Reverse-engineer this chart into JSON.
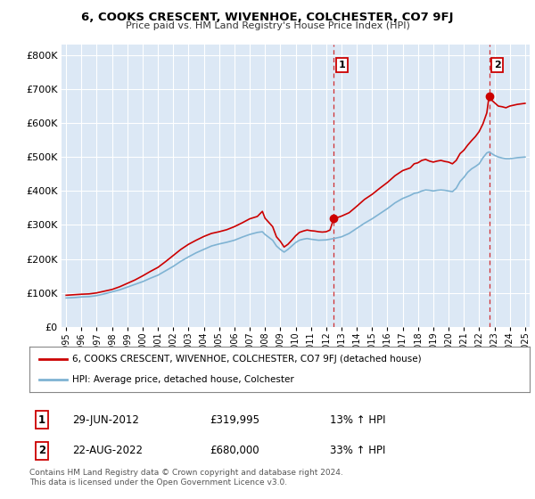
{
  "title": "6, COOKS CRESCENT, WIVENHOE, COLCHESTER, CO7 9FJ",
  "subtitle": "Price paid vs. HM Land Registry's House Price Index (HPI)",
  "legend_line1": "6, COOKS CRESCENT, WIVENHOE, COLCHESTER, CO7 9FJ (detached house)",
  "legend_line2": "HPI: Average price, detached house, Colchester",
  "annotation1_label": "1",
  "annotation1_date": "29-JUN-2012",
  "annotation1_price": "£319,995",
  "annotation1_hpi": "13% ↑ HPI",
  "annotation2_label": "2",
  "annotation2_date": "22-AUG-2022",
  "annotation2_price": "£680,000",
  "annotation2_hpi": "33% ↑ HPI",
  "footer": "Contains HM Land Registry data © Crown copyright and database right 2024.\nThis data is licensed under the Open Government Licence v3.0.",
  "red_color": "#cc0000",
  "blue_color": "#7fb3d3",
  "point1_x": 2012.5,
  "point2_x": 2022.65,
  "point1_y": 319995,
  "point2_y": 680000,
  "xlim_lo": 1994.7,
  "xlim_hi": 2025.3,
  "ylim_lo": 0,
  "ylim_hi": 830000,
  "ytick_vals": [
    0,
    100000,
    200000,
    300000,
    400000,
    500000,
    600000,
    700000,
    800000
  ],
  "ytick_labels": [
    "£0",
    "£100K",
    "£200K",
    "£300K",
    "£400K",
    "£500K",
    "£600K",
    "£700K",
    "£800K"
  ],
  "xticks": [
    1995,
    1996,
    1997,
    1998,
    1999,
    2000,
    2001,
    2002,
    2003,
    2004,
    2005,
    2006,
    2007,
    2008,
    2009,
    2010,
    2011,
    2012,
    2013,
    2014,
    2015,
    2016,
    2017,
    2018,
    2019,
    2020,
    2021,
    2022,
    2023,
    2024,
    2025
  ],
  "background_color": "#dce8f5"
}
